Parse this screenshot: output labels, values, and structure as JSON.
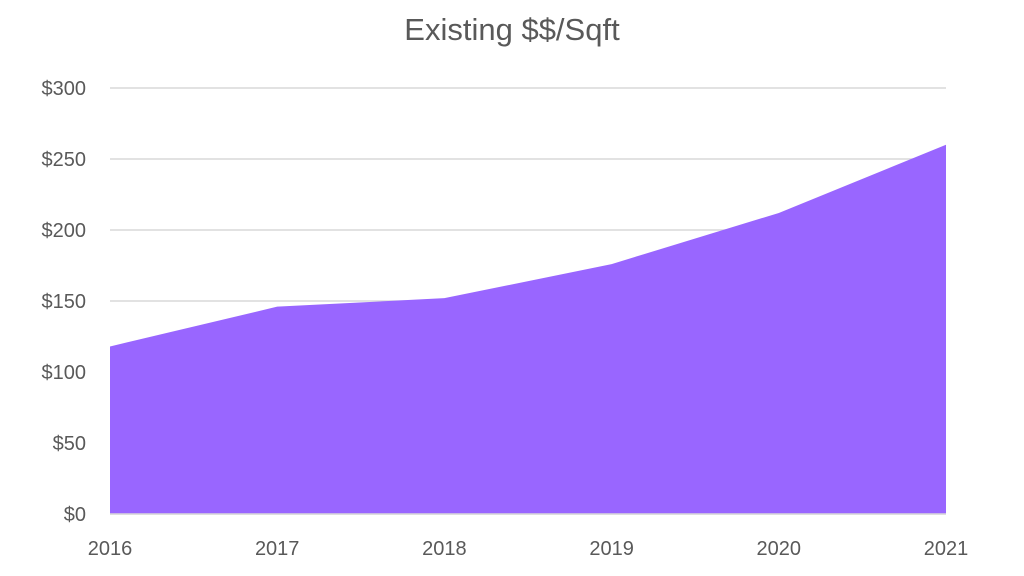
{
  "chart_data": {
    "type": "area",
    "title": "Existing $$/Sqft",
    "categories": [
      "2016",
      "2017",
      "2018",
      "2019",
      "2020",
      "2021"
    ],
    "series": [
      {
        "values": [
          118,
          146,
          152,
          176,
          212,
          260
        ]
      }
    ],
    "ylim": [
      0,
      300
    ],
    "yticks": [
      0,
      50,
      100,
      150,
      200,
      250,
      300
    ],
    "ytick_labels": [
      "$0",
      "$50",
      "$100",
      "$150",
      "$200",
      "$250",
      "$300"
    ],
    "grid": true,
    "legend": "none",
    "colors": {
      "area": "#9966ff",
      "grid": "#d9d9d9",
      "text": "#595959"
    }
  }
}
